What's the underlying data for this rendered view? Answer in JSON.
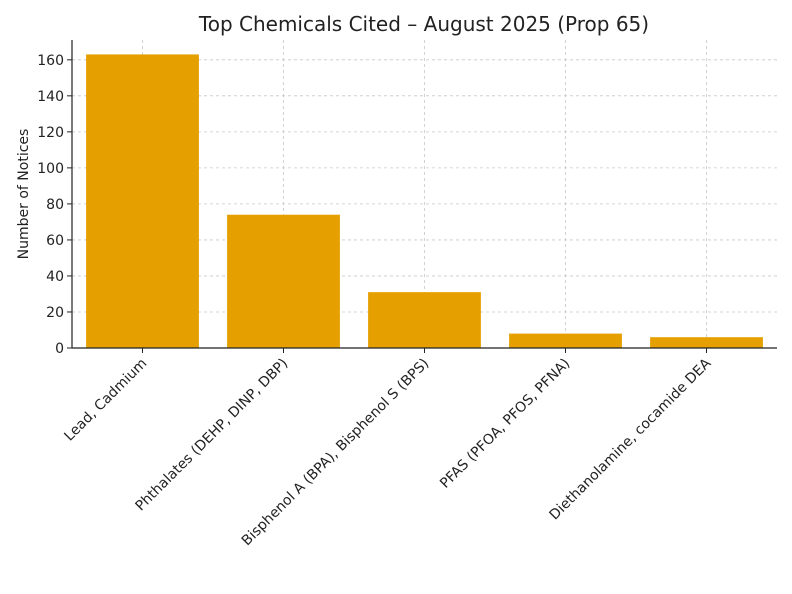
{
  "chart_data": {
    "type": "bar",
    "title": "Top Chemicals Cited – August 2025 (Prop 65)",
    "xlabel": "",
    "ylabel": "Number of Notices",
    "categories": [
      "Lead, Cadmium",
      "Phthalates (DEHP, DINP, DBP)",
      "Bisphenol A (BPA), Bisphenol S (BPS)",
      "PFAS (PFOA, PFOS, PFNA)",
      "Diethanolamine, cocamide DEA"
    ],
    "values": [
      163,
      74,
      31,
      8,
      6
    ],
    "ylim": [
      0,
      171
    ],
    "yticks": [
      0,
      20,
      40,
      60,
      80,
      100,
      120,
      140,
      160
    ],
    "bar_color": "#E5A000",
    "grid": true
  }
}
